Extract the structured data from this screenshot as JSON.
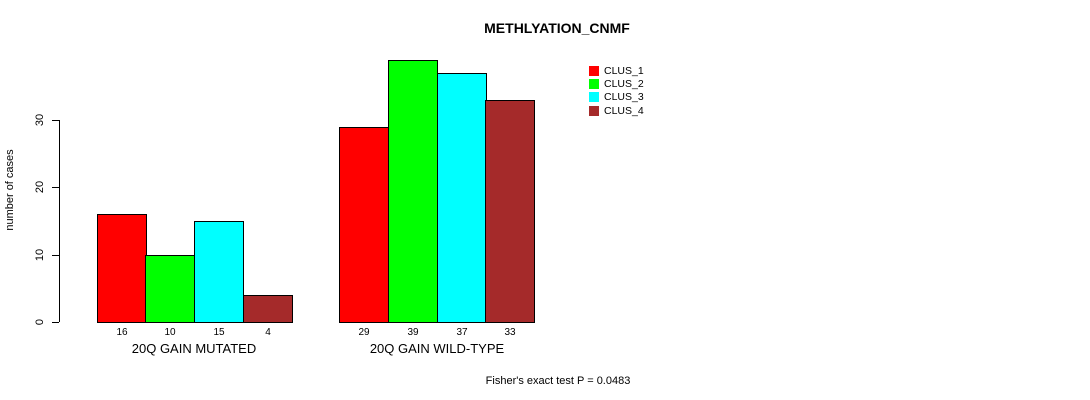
{
  "title": "METHLYATION_CNMF",
  "footer": "Fisher's exact test P = 0.0483",
  "y_axis": {
    "label": "number of cases",
    "ticks": [
      0,
      10,
      20,
      30
    ]
  },
  "legend": {
    "position": "right",
    "items": [
      {
        "label": "CLUS_1",
        "color": "#ff0000"
      },
      {
        "label": "CLUS_2",
        "color": "#00ff00"
      },
      {
        "label": "CLUS_3",
        "color": "#00ffff"
      },
      {
        "label": "CLUS_4",
        "color": "#a52a2a"
      }
    ]
  },
  "chart_data": {
    "type": "bar",
    "title": "METHLYATION_CNMF",
    "xlabel": "",
    "ylabel": "number of cases",
    "ylim": [
      0,
      40
    ],
    "yticks": [
      0,
      10,
      20,
      30
    ],
    "grid": false,
    "legend_position": "right",
    "bar_borders": "#000000",
    "categories": [
      "20Q GAIN MUTATED",
      "20Q GAIN WILD-TYPE"
    ],
    "series": [
      {
        "name": "CLUS_1",
        "color": "#ff0000",
        "values": [
          16,
          29
        ]
      },
      {
        "name": "CLUS_2",
        "color": "#00ff00",
        "values": [
          10,
          39
        ]
      },
      {
        "name": "CLUS_3",
        "color": "#00ffff",
        "values": [
          15,
          37
        ]
      },
      {
        "name": "CLUS_4",
        "color": "#a52a2a",
        "values": [
          4,
          33
        ]
      }
    ],
    "bar_value_labels": [
      [
        16,
        10,
        15,
        4
      ],
      [
        29,
        39,
        37,
        33
      ]
    ],
    "annotation": "Fisher's exact test P = 0.0483"
  }
}
